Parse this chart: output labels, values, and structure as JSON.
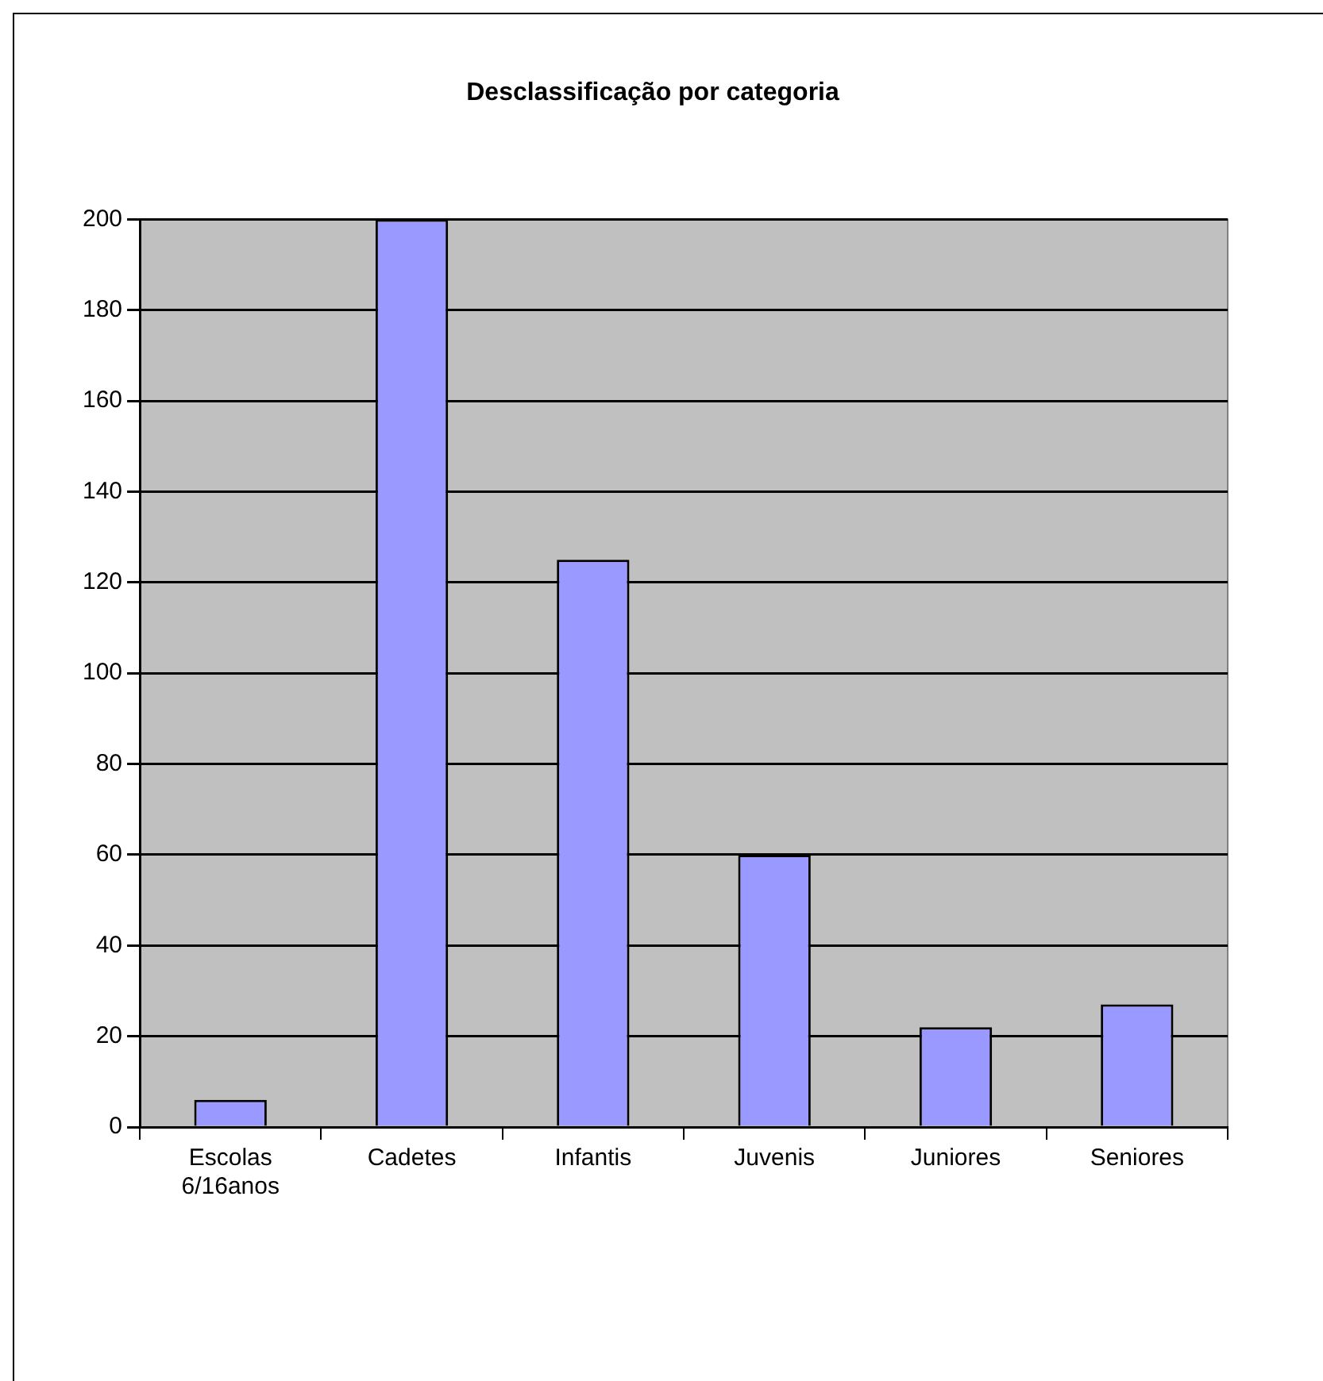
{
  "chart_data": {
    "type": "bar",
    "title": "Desclassificação por categoria",
    "categories": [
      "Escolas 6/16anos",
      "Cadetes",
      "Infantis",
      "Juvenis",
      "Juniores",
      "Seniores"
    ],
    "values": [
      6,
      200,
      125,
      60,
      22,
      27
    ],
    "color": "#9999ff",
    "ylim": [
      0,
      200
    ],
    "yticks": [
      0,
      20,
      40,
      60,
      80,
      100,
      120,
      140,
      160,
      180,
      200
    ],
    "grid": "y",
    "legend": false
  }
}
